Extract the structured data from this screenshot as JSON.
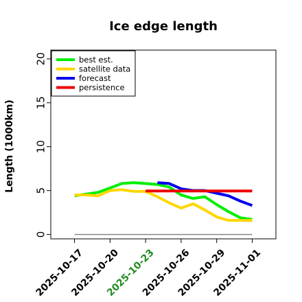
{
  "chart_data": {
    "type": "line",
    "title": "Ice edge length",
    "ylabel": "Length (1000km)",
    "xlabel": "",
    "ylim": [
      -0.5,
      21
    ],
    "yticks": [
      0,
      5,
      10,
      15,
      20
    ],
    "ytick_labels": [
      "0",
      "5",
      "10",
      "15",
      "20"
    ],
    "xlim": [
      "2025-10-15",
      "2025-11-03"
    ],
    "xticks": [
      "2025-10-17",
      "2025-10-20",
      "2025-10-23",
      "2025-10-26",
      "2025-10-29",
      "2025-11-01"
    ],
    "xtick_labels": [
      "2025-10-17",
      "2025-10-20",
      "2025-10-23",
      "2025-10-26",
      "2025-10-29",
      "2025-11-01"
    ],
    "xtick_colors": [
      "#000000",
      "#000000",
      "#228B22",
      "#000000",
      "#000000",
      "#000000"
    ],
    "grid": false,
    "legend_position": "top-left",
    "series": [
      {
        "name": "best est.",
        "color": "#00ee00",
        "x": [
          "2025-10-17",
          "2025-10-18",
          "2025-10-19",
          "2025-10-20",
          "2025-10-21",
          "2025-10-22",
          "2025-10-23",
          "2025-10-24",
          "2025-10-25",
          "2025-10-26",
          "2025-10-27",
          "2025-10-28",
          "2025-10-29",
          "2025-10-30",
          "2025-10-31",
          "2025-11-01"
        ],
        "y": [
          4.4,
          4.6,
          4.8,
          5.3,
          5.8,
          5.9,
          5.8,
          5.7,
          5.4,
          4.5,
          4.1,
          4.3,
          3.4,
          2.6,
          1.9,
          1.7
        ]
      },
      {
        "name": "satellite data",
        "color": "#ffd700",
        "x": [
          "2025-10-17",
          "2025-10-18",
          "2025-10-19",
          "2025-10-20",
          "2025-10-21",
          "2025-10-22",
          "2025-10-23",
          "2025-10-24",
          "2025-10-25",
          "2025-10-26",
          "2025-10-27",
          "2025-10-28",
          "2025-10-29",
          "2025-10-30",
          "2025-10-31",
          "2025-11-01"
        ],
        "y": [
          4.5,
          4.5,
          4.4,
          5.0,
          5.1,
          4.9,
          4.9,
          4.3,
          3.6,
          3.0,
          3.5,
          2.8,
          2.0,
          1.6,
          1.6,
          1.6
        ]
      },
      {
        "name": "forecast",
        "color": "#0000ee",
        "x": [
          "2025-10-24",
          "2025-10-25",
          "2025-10-26",
          "2025-10-27",
          "2025-10-28",
          "2025-10-29",
          "2025-10-30",
          "2025-10-31",
          "2025-11-01"
        ],
        "y": [
          5.9,
          5.8,
          5.2,
          5.0,
          5.0,
          4.7,
          4.4,
          3.8,
          3.3
        ]
      },
      {
        "name": "persistence",
        "color": "#ee0000",
        "x": [
          "2025-10-23",
          "2025-11-01"
        ],
        "y": [
          4.95,
          4.95
        ]
      }
    ],
    "reference_line": {
      "color": "#888888",
      "x": [
        "2025-10-17",
        "2025-11-01"
      ],
      "y": [
        0,
        0
      ]
    }
  }
}
